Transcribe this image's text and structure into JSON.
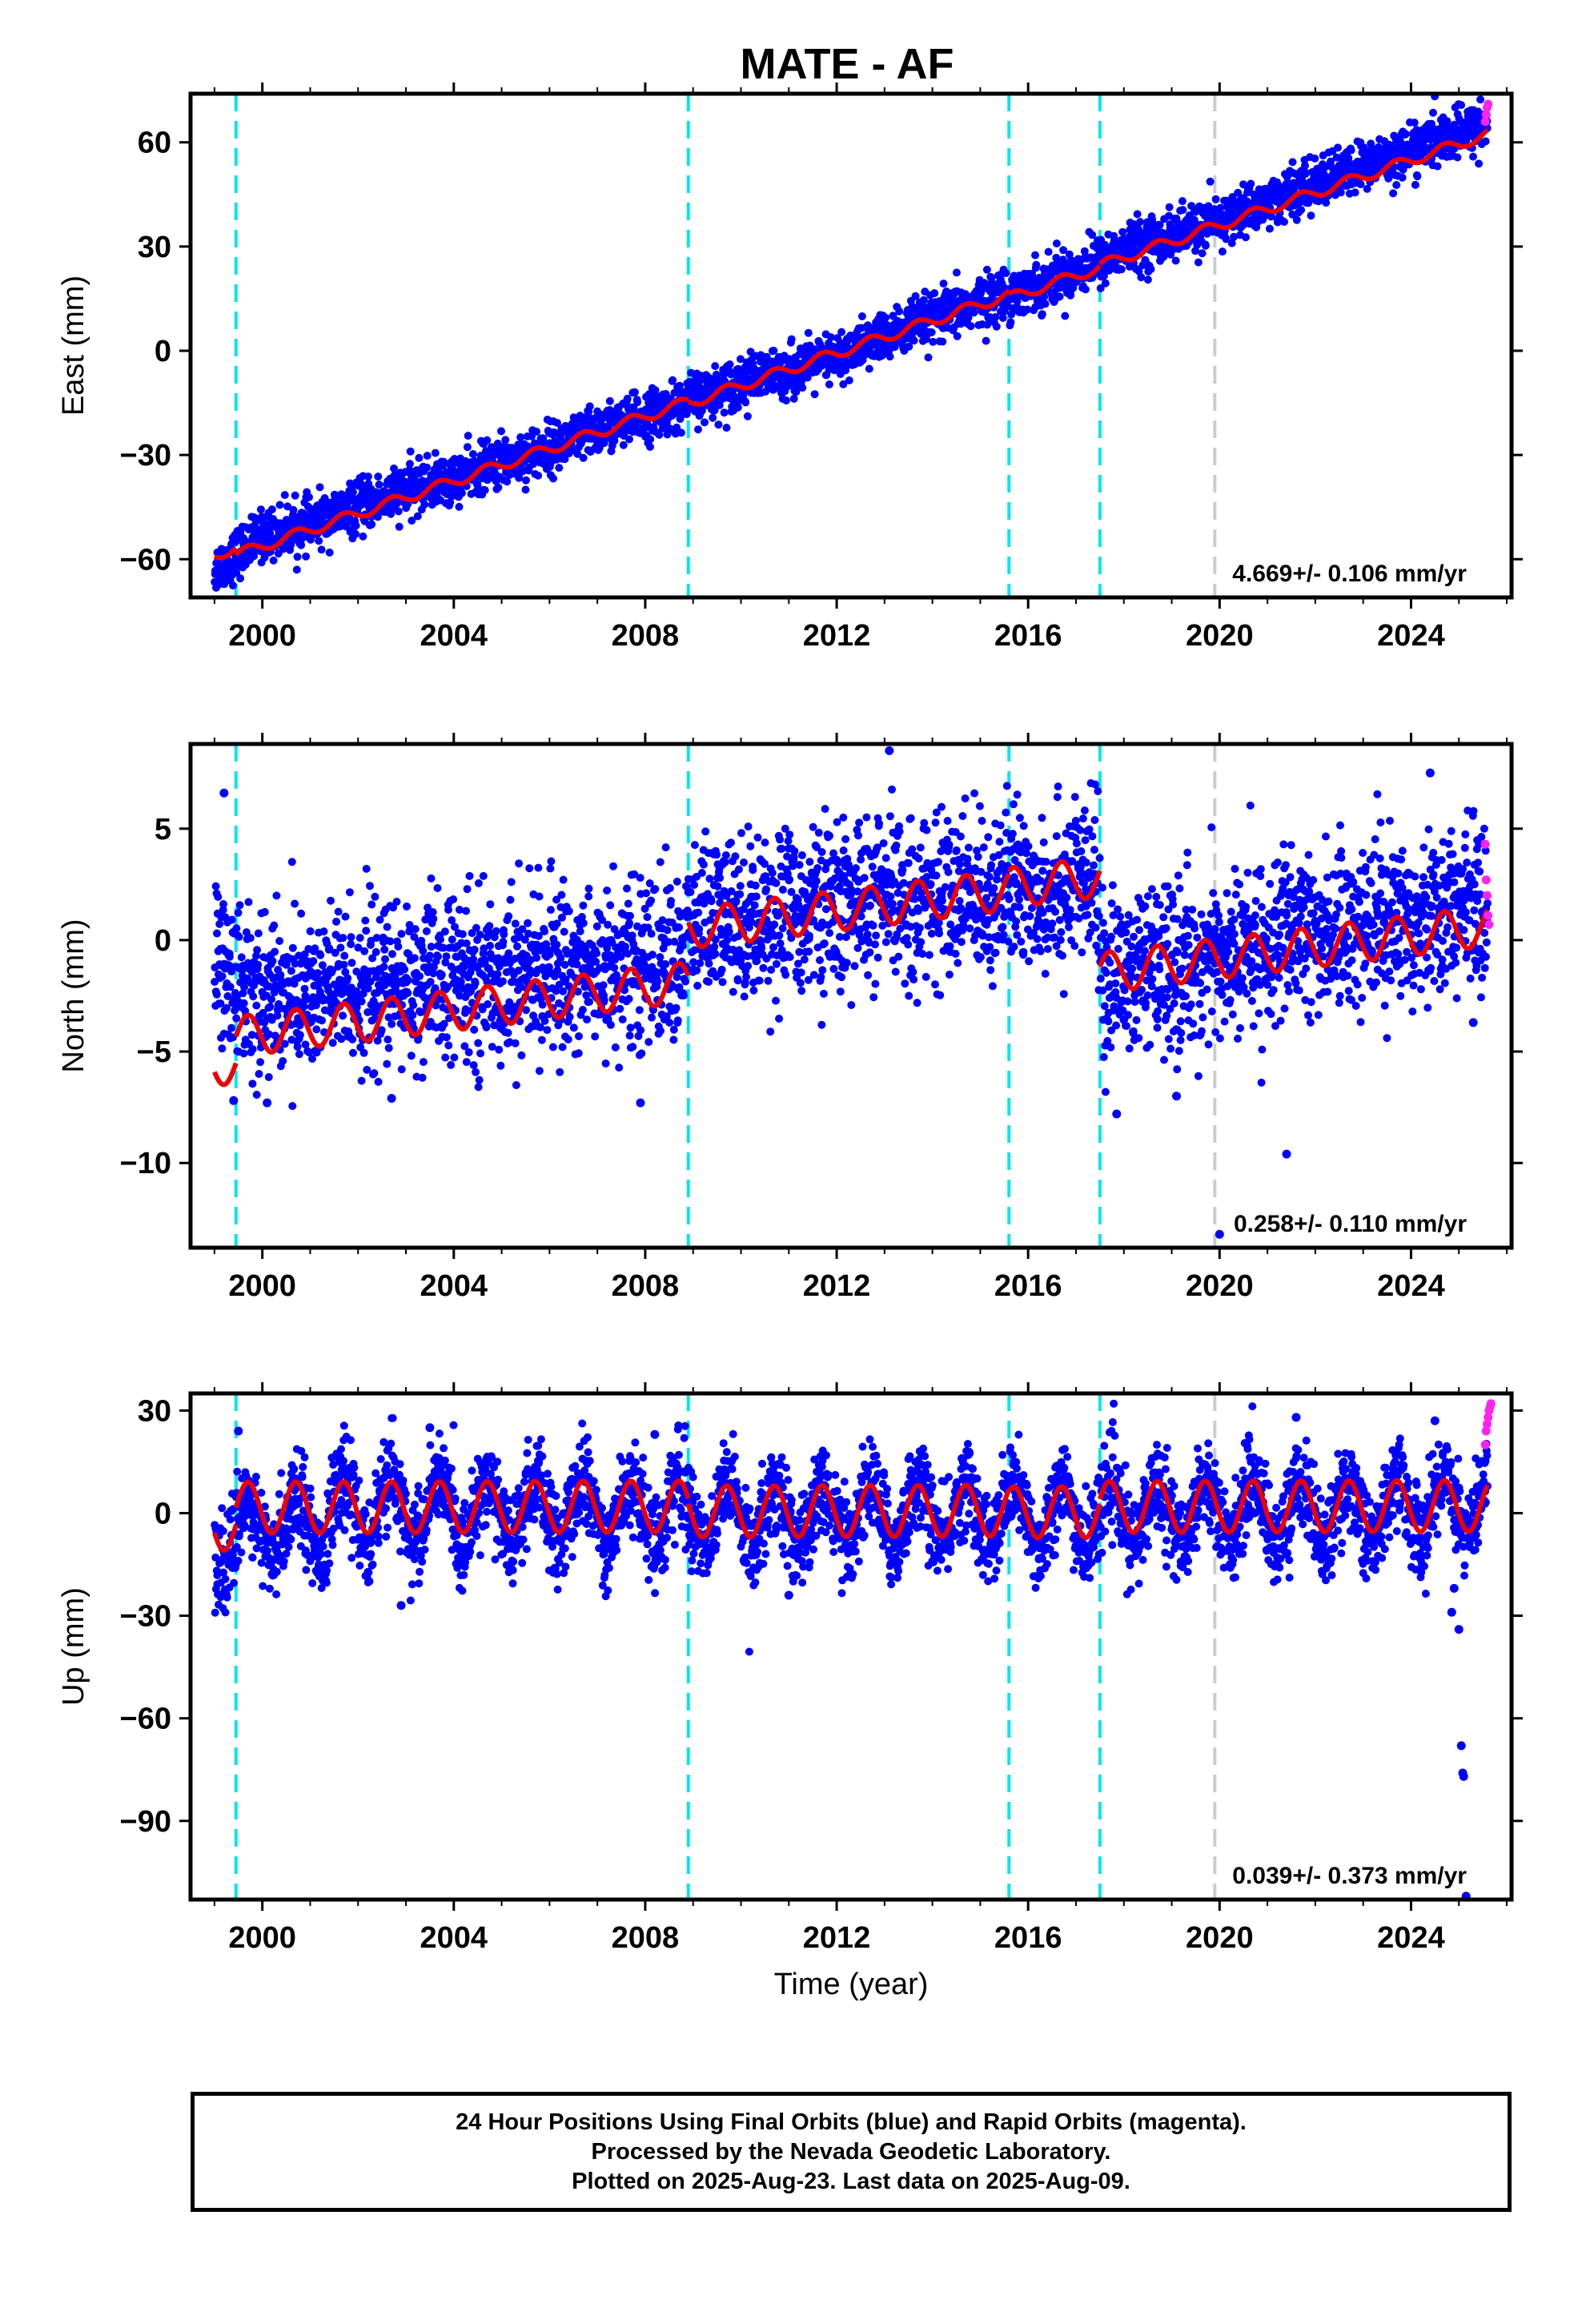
{
  "title": "MATE - AF",
  "colors": {
    "final": "#0000ff",
    "rapid": "#ff22ee",
    "model": "#ee0000",
    "event": "#00e5ee",
    "reference": "#cccccc"
  },
  "chart_data": [
    {
      "type": "scatter",
      "panel": "east",
      "title": "MATE - AF",
      "ylabel": "East (mm)",
      "xlabel": "",
      "xlim": [
        1998.5,
        2026.1
      ],
      "ylim": [
        -71,
        74
      ],
      "yticks": [
        -60,
        -30,
        0,
        30,
        60
      ],
      "xticks": [
        2000,
        2004,
        2008,
        2012,
        2016,
        2020,
        2024
      ],
      "event_lines": [
        1999.45,
        2008.9,
        2015.6,
        2017.5
      ],
      "reference_line": 2019.9,
      "rate_label": "4.669+/- 0.106 mm/yr",
      "series": [
        {
          "name": "Final Orbits",
          "color": "#0000ff",
          "x": [
            1999.0,
            2000.0,
            2001.0,
            2002.0,
            2003.0,
            2004.0,
            2005.0,
            2006.0,
            2007.0,
            2008.0,
            2009.0,
            2010.0,
            2011.0,
            2012.0,
            2013.0,
            2014.0,
            2015.0,
            2016.0,
            2017.0,
            2018.0,
            2019.0,
            2020.0,
            2021.0,
            2022.0,
            2023.0,
            2024.0,
            2025.0,
            2025.6
          ],
          "y": [
            -63,
            -53,
            -50,
            -45,
            -40,
            -37,
            -32,
            -28,
            -23,
            -19,
            -14,
            -9,
            -6,
            -2,
            4,
            9,
            14,
            18,
            23,
            29,
            33,
            37,
            43,
            48,
            53,
            58,
            62,
            66
          ],
          "scatter_mm": 3.5
        },
        {
          "name": "Rapid Orbits",
          "color": "#ff22ee",
          "x": [
            2025.55,
            2025.57,
            2025.59,
            2025.61
          ],
          "y": [
            66,
            68,
            70,
            71
          ]
        },
        {
          "name": "Model",
          "color": "#ee0000",
          "kind": "line",
          "velocity_mm_per_yr": 4.669,
          "annual_amplitude_mm": 1.5,
          "segments": [
            {
              "start": 1999.0,
              "end": 1999.45,
              "offset_at_2010_mm": -7.5
            },
            {
              "start": 1999.45,
              "end": 2008.9,
              "offset_at_2010_mm": -9.5
            },
            {
              "start": 2008.9,
              "end": 2015.6,
              "offset_at_2010_mm": -10.0
            },
            {
              "start": 2015.6,
              "end": 2017.5,
              "offset_at_2010_mm": -11.0
            },
            {
              "start": 2017.5,
              "end": 2025.6,
              "offset_at_2010_mm": -10.5
            }
          ]
        }
      ]
    },
    {
      "type": "scatter",
      "panel": "north",
      "ylabel": "North (mm)",
      "xlabel": "",
      "xlim": [
        1998.5,
        2026.1
      ],
      "ylim": [
        -13.8,
        8.8
      ],
      "yticks": [
        -10,
        -5,
        0,
        5
      ],
      "xticks": [
        2000,
        2004,
        2008,
        2012,
        2016,
        2020,
        2024
      ],
      "event_lines": [
        1999.45,
        2008.9,
        2015.6,
        2017.5
      ],
      "reference_line": 2019.9,
      "rate_label": "0.258+/- 0.110 mm/yr",
      "series": [
        {
          "name": "Final Orbits",
          "color": "#0000ff",
          "x": [
            1999.0,
            2000.0,
            2001.0,
            2002.0,
            2003.0,
            2004.0,
            2005.0,
            2006.0,
            2007.0,
            2008.0,
            2008.8,
            2009.0,
            2010.0,
            2011.0,
            2012.0,
            2013.0,
            2014.0,
            2015.0,
            2016.0,
            2017.0,
            2017.4,
            2017.6,
            2018.0,
            2019.0,
            2020.0,
            2021.0,
            2022.0,
            2023.0,
            2024.0,
            2025.0,
            2025.6
          ],
          "y": [
            -1.0,
            -2.5,
            -2.4,
            -2.2,
            -2.0,
            -1.8,
            -1.6,
            -1.4,
            -1.2,
            -1.0,
            -0.8,
            0.8,
            1.0,
            1.3,
            1.5,
            1.7,
            1.9,
            2.1,
            2.3,
            2.5,
            2.6,
            -1.8,
            -1.5,
            -1.3,
            -0.8,
            -0.2,
            0.3,
            0.7,
            1.1,
            1.5,
            1.7
          ],
          "scatter_mm": 1.8,
          "outliers": [
            [
              1999.2,
              6.6
            ],
            [
              1999.4,
              -7.2
            ],
            [
              2000.1,
              -7.3
            ],
            [
              2002.7,
              -7.1
            ],
            [
              2007.9,
              -7.3
            ],
            [
              2013.1,
              8.5
            ],
            [
              2017.85,
              -7.8
            ],
            [
              2019.1,
              -7.0
            ],
            [
              2020.0,
              -13.2
            ],
            [
              2021.4,
              -9.6
            ],
            [
              2024.4,
              7.5
            ],
            [
              2025.3,
              -3.7
            ]
          ]
        },
        {
          "name": "Rapid Orbits",
          "color": "#ff22ee",
          "x": [
            2025.55,
            2025.57,
            2025.59,
            2025.61,
            2025.63
          ],
          "y": [
            4.3,
            2.7,
            2.0,
            1.1,
            0.7
          ]
        },
        {
          "name": "Model",
          "color": "#ee0000",
          "kind": "line",
          "velocity_mm_per_yr": 0.258,
          "annual_amplitude_mm": 0.9,
          "segments": [
            {
              "start": 1999.0,
              "end": 1999.45,
              "offset_at_2010_mm": -2.8
            },
            {
              "start": 1999.45,
              "end": 2008.9,
              "offset_at_2010_mm": -1.6
            },
            {
              "start": 2008.9,
              "end": 2015.6,
              "offset_at_2010_mm": 0.8
            },
            {
              "start": 2015.6,
              "end": 2017.5,
              "offset_at_2010_mm": 0.9
            },
            {
              "start": 2017.5,
              "end": 2025.6,
              "offset_at_2010_mm": -3.4
            }
          ]
        }
      ]
    },
    {
      "type": "scatter",
      "panel": "up",
      "ylabel": "Up (mm)",
      "xlabel": "Time (year)",
      "xlim": [
        1998.5,
        2026.1
      ],
      "ylim": [
        -113,
        35
      ],
      "yticks": [
        -90,
        -60,
        -30,
        0,
        30
      ],
      "xticks": [
        2000,
        2004,
        2008,
        2012,
        2016,
        2020,
        2024
      ],
      "event_lines": [
        1999.45,
        2008.9,
        2015.6,
        2017.5
      ],
      "reference_line": 2019.9,
      "rate_label": "0.039+/- 0.373 mm/yr",
      "series": [
        {
          "name": "Final Orbits",
          "color": "#0000ff",
          "x": [
            1999.0,
            2002.0,
            2005.0,
            2008.0,
            2011.0,
            2014.0,
            2017.0,
            2020.0,
            2023.0,
            2025.6
          ],
          "y": [
            -8,
            1,
            0,
            1,
            -1,
            0,
            -1,
            1,
            0,
            4
          ],
          "scatter_mm": 6.5,
          "annual_amplitude_mm": 9,
          "outliers": [
            [
              1999.5,
              24
            ],
            [
              2002.9,
              -27
            ],
            [
              2003.5,
              25
            ],
            [
              2008.2,
              23
            ],
            [
              2011.0,
              -24
            ],
            [
              2021.6,
              28
            ],
            [
              2024.5,
              27
            ],
            [
              2024.85,
              -29
            ],
            [
              2025.0,
              -34
            ],
            [
              2025.05,
              -68
            ],
            [
              2025.08,
              -76
            ],
            [
              2025.1,
              -77
            ],
            [
              2025.15,
              -112
            ],
            [
              2024.9,
              -22
            ]
          ]
        },
        {
          "name": "Rapid Orbits",
          "color": "#ff22ee",
          "x": [
            2025.55,
            2025.57,
            2025.59,
            2025.61,
            2025.63,
            2025.65,
            2025.67
          ],
          "y": [
            20,
            24,
            26,
            28,
            30,
            31,
            32
          ]
        },
        {
          "name": "Model",
          "color": "#ee0000",
          "kind": "line",
          "velocity_mm_per_yr": 0.039,
          "annual_amplitude_mm": 7.5,
          "segments": [
            {
              "start": 1999.0,
              "end": 1999.45,
              "offset_at_2010_mm": -3.0
            },
            {
              "start": 1999.45,
              "end": 2008.9,
              "offset_at_2010_mm": 2.0
            },
            {
              "start": 2008.9,
              "end": 2015.6,
              "offset_at_2010_mm": 0.5
            },
            {
              "start": 2015.6,
              "end": 2017.5,
              "offset_at_2010_mm": 0.0
            },
            {
              "start": 2017.5,
              "end": 2025.6,
              "offset_at_2010_mm": 1.5
            }
          ]
        }
      ]
    }
  ],
  "footer": {
    "line1": "24 Hour Positions Using Final Orbits (blue) and Rapid Orbits (magenta).",
    "line2": "Processed by the Nevada Geodetic Laboratory.",
    "line3": "Plotted on 2025-Aug-23. Last data on 2025-Aug-09."
  }
}
